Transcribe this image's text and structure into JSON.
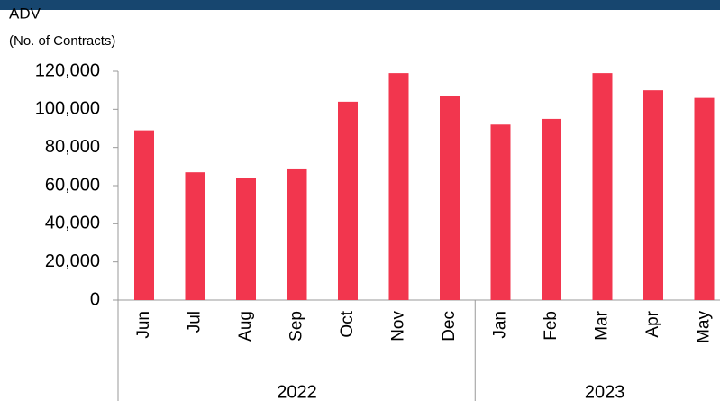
{
  "chart_data": {
    "type": "bar",
    "title": "ADV",
    "subtitle": "(No. of Contracts)",
    "categories": [
      "Jun",
      "Jul",
      "Aug",
      "Sep",
      "Oct",
      "Nov",
      "Dec",
      "Jan",
      "Feb",
      "Mar",
      "Apr",
      "May"
    ],
    "groups": [
      {
        "label": "2022",
        "span": 7
      },
      {
        "label": "2023",
        "span": 5
      }
    ],
    "values": [
      89000,
      67000,
      64000,
      69000,
      104000,
      119000,
      107000,
      92000,
      95000,
      119000,
      110000,
      106000
    ],
    "color": "#f2364e",
    "ylim": [
      0,
      120000
    ],
    "yticks": [
      0,
      {
        "value": 20000,
        "label": "20,000"
      },
      {
        "value": 40000,
        "label": "40,000"
      },
      {
        "value": 60000,
        "label": "60,000"
      },
      {
        "value": 80000,
        "label": "80,000"
      },
      {
        "value": 100000,
        "label": "100,000"
      },
      {
        "value": 120000,
        "label": "120,000"
      }
    ],
    "grid": false
  }
}
